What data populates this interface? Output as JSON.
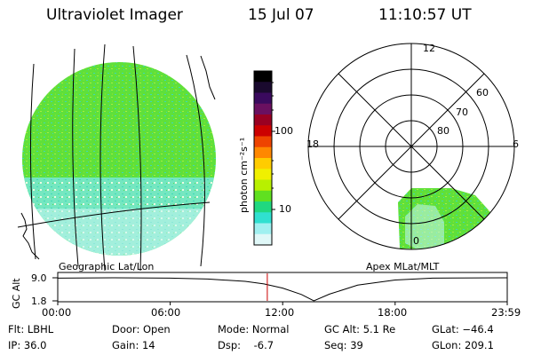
{
  "header": {
    "instrument": "Ultraviolet Imager",
    "date": "15 Jul 07",
    "time": "11:10:57 UT"
  },
  "panels": {
    "left_caption": "Geographic Lat/Lon",
    "right_caption": "Apex MLat/MLT"
  },
  "colorbar": {
    "unit_label": "photon cm⁻²s⁻¹",
    "scale": "log",
    "ticks": [
      "100",
      "10"
    ],
    "colors": [
      "#000000",
      "#1a0a2e",
      "#3a0a5e",
      "#6a1060",
      "#990022",
      "#cc0000",
      "#ee4400",
      "#ff8800",
      "#ffcc00",
      "#f0f000",
      "#b8f000",
      "#60e020",
      "#20d880",
      "#30e0d0",
      "#a0f0f0",
      "#e0f8f8"
    ]
  },
  "polar_labels": {
    "mlt": [
      "12",
      "18",
      "6",
      "0"
    ],
    "mlat": [
      "60",
      "70",
      "80"
    ]
  },
  "chart_data": {
    "type": "line",
    "title": "",
    "ylabel": "GC Alt",
    "ytick_labels": [
      "9.0",
      "1.8"
    ],
    "ylim": [
      1.8,
      9.0
    ],
    "xtick_labels": [
      "00:00",
      "06:00",
      "12:00",
      "18:00",
      "23:59"
    ],
    "series": [
      {
        "x": [
          "00:00",
          "03:00",
          "06:00",
          "08:00",
          "10:00",
          "11:00",
          "12:00",
          "13:00",
          "13:40",
          "14:30",
          "16:00",
          "18:00",
          "20:00",
          "23:59"
        ],
        "values": [
          8.9,
          9.0,
          8.9,
          8.6,
          7.9,
          7.1,
          5.8,
          3.8,
          1.8,
          3.9,
          6.7,
          8.3,
          8.9,
          9.0
        ]
      }
    ],
    "marker_time": "11:10:57"
  },
  "status": {
    "filter": "Flt: LBHL",
    "ip": "IP: 36.0",
    "door": "Door: Open",
    "gain": "Gain: 14",
    "mode": "Mode: Normal",
    "dsp": "Dsp:    -6.7",
    "gc_alt": "GC Alt: 5.1 Re",
    "seq": "Seq: 39",
    "glat": "GLat: −46.4",
    "glon": "GLon: 209.1"
  },
  "colors": {
    "emission_green": "#5fe03a",
    "emission_cyan": "#3fd8b8",
    "marker": "#cc0000"
  }
}
